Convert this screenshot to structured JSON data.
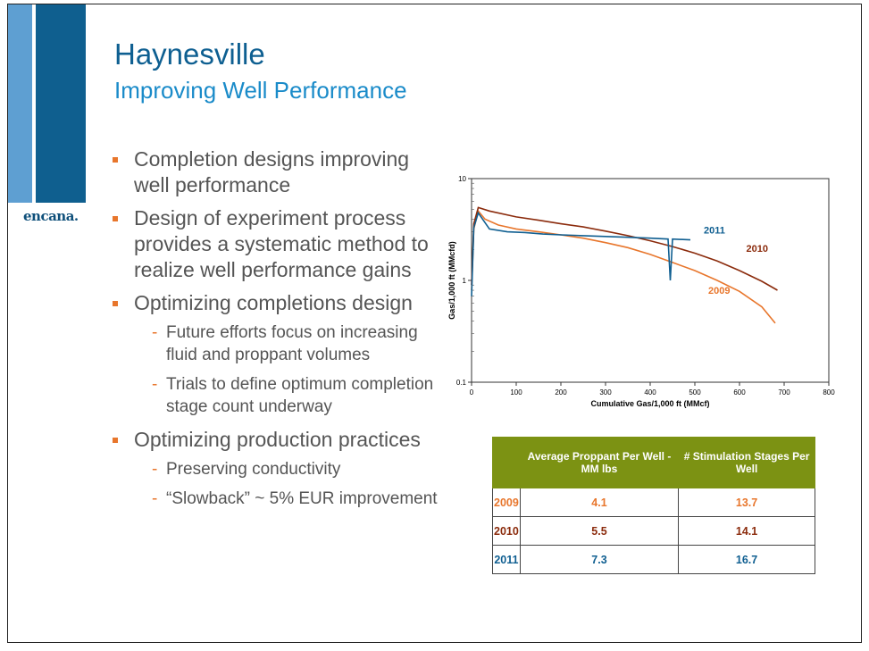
{
  "header": {
    "title": "Haynesville",
    "subtitle": "Improving Well Performance",
    "logo": "encana."
  },
  "bullets": [
    {
      "text": "Completion designs improving well performance",
      "subs": []
    },
    {
      "text": "Design of experiment process provides a systematic method to realize well performance gains",
      "subs": []
    },
    {
      "text": "Optimizing completions design",
      "subs": [
        "Future efforts focus on increasing fluid and proppant volumes",
        "Trials to define optimum completion stage count underway"
      ]
    },
    {
      "text": "Optimizing production practices",
      "subs": [
        "Preserving conductivity",
        "“Slowback” ~ 5% EUR improvement"
      ]
    }
  ],
  "chart_data": {
    "type": "line",
    "xlabel": "Cumulative Gas/1,000 ft (MMcf)",
    "ylabel": "Gas/1,000 ft (MMcfd)",
    "xlim": [
      0,
      800
    ],
    "ylim": [
      0.1,
      10
    ],
    "yscale": "log",
    "x_ticks": [
      "0",
      "100",
      "200",
      "300",
      "400",
      "500",
      "600",
      "700",
      "800"
    ],
    "y_ticks": [
      "0.1",
      "1",
      "10"
    ],
    "grid": false,
    "series": [
      {
        "name": "2009",
        "color": "#e8762c",
        "points": [
          [
            0,
            0.8
          ],
          [
            5,
            3.2
          ],
          [
            15,
            4.8
          ],
          [
            30,
            4.0
          ],
          [
            60,
            3.5
          ],
          [
            100,
            3.2
          ],
          [
            150,
            3.0
          ],
          [
            200,
            2.8
          ],
          [
            250,
            2.6
          ],
          [
            300,
            2.35
          ],
          [
            350,
            2.1
          ],
          [
            400,
            1.8
          ],
          [
            450,
            1.5
          ],
          [
            500,
            1.25
          ],
          [
            550,
            1.0
          ],
          [
            600,
            0.78
          ],
          [
            650,
            0.55
          ],
          [
            680,
            0.38
          ]
        ]
      },
      {
        "name": "2010",
        "color": "#8b2b0c",
        "points": [
          [
            0,
            0.9
          ],
          [
            5,
            3.6
          ],
          [
            15,
            5.2
          ],
          [
            40,
            4.8
          ],
          [
            100,
            4.2
          ],
          [
            150,
            3.9
          ],
          [
            200,
            3.6
          ],
          [
            250,
            3.35
          ],
          [
            300,
            3.05
          ],
          [
            350,
            2.75
          ],
          [
            400,
            2.45
          ],
          [
            450,
            2.15
          ],
          [
            500,
            1.85
          ],
          [
            550,
            1.55
          ],
          [
            600,
            1.25
          ],
          [
            650,
            0.98
          ],
          [
            685,
            0.8
          ]
        ]
      },
      {
        "name": "2011",
        "color": "#105f91",
        "points": [
          [
            0,
            0.7
          ],
          [
            5,
            3.3
          ],
          [
            15,
            4.6
          ],
          [
            40,
            3.2
          ],
          [
            80,
            3.0
          ],
          [
            120,
            2.95
          ],
          [
            160,
            2.85
          ],
          [
            200,
            2.8
          ],
          [
            250,
            2.75
          ],
          [
            300,
            2.7
          ],
          [
            350,
            2.65
          ],
          [
            400,
            2.6
          ],
          [
            440,
            2.55
          ],
          [
            445,
            1.0
          ],
          [
            450,
            2.55
          ],
          [
            490,
            2.5
          ]
        ]
      }
    ]
  },
  "table": {
    "headers": [
      "",
      "Average  Proppant Per Well - MM lbs",
      "# Stimulation Stages Per Well"
    ],
    "rows": [
      {
        "year": "2009",
        "proppant": "4.1",
        "stages": "13.7"
      },
      {
        "year": "2010",
        "proppant": "5.5",
        "stages": "14.1"
      },
      {
        "year": "2011",
        "proppant": "7.3",
        "stages": "16.7"
      }
    ]
  }
}
